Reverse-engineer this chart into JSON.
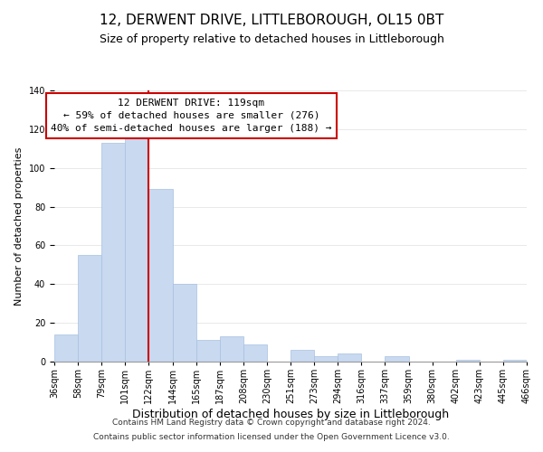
{
  "title": "12, DERWENT DRIVE, LITTLEBOROUGH, OL15 0BT",
  "subtitle": "Size of property relative to detached houses in Littleborough",
  "xlabel": "Distribution of detached houses by size in Littleborough",
  "ylabel": "Number of detached properties",
  "bar_color": "#c8d9f0",
  "bar_edge_color": "#a8c0e0",
  "bins": [
    "36sqm",
    "58sqm",
    "79sqm",
    "101sqm",
    "122sqm",
    "144sqm",
    "165sqm",
    "187sqm",
    "208sqm",
    "230sqm",
    "251sqm",
    "273sqm",
    "294sqm",
    "316sqm",
    "337sqm",
    "359sqm",
    "380sqm",
    "402sqm",
    "423sqm",
    "445sqm",
    "466sqm"
  ],
  "values": [
    14,
    55,
    113,
    116,
    89,
    40,
    11,
    13,
    9,
    0,
    6,
    3,
    4,
    0,
    3,
    0,
    0,
    1,
    0,
    1
  ],
  "vline_x": 4,
  "vline_color": "#cc0000",
  "annotation_line1": "12 DERWENT DRIVE: 119sqm",
  "annotation_line2": "← 59% of detached houses are smaller (276)",
  "annotation_line3": "40% of semi-detached houses are larger (188) →",
  "annotation_box_color": "#ffffff",
  "annotation_box_edge_color": "#cc0000",
  "ylim": [
    0,
    140
  ],
  "yticks": [
    0,
    20,
    40,
    60,
    80,
    100,
    120,
    140
  ],
  "footer1": "Contains HM Land Registry data © Crown copyright and database right 2024.",
  "footer2": "Contains public sector information licensed under the Open Government Licence v3.0.",
  "title_fontsize": 11,
  "subtitle_fontsize": 9,
  "xlabel_fontsize": 9,
  "ylabel_fontsize": 8,
  "tick_fontsize": 7,
  "annotation_fontsize": 8,
  "footer_fontsize": 6.5,
  "background_color": "#ffffff"
}
